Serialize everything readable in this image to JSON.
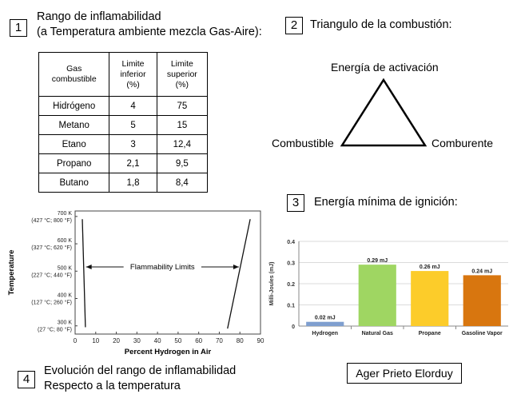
{
  "section1": {
    "number": "1",
    "title_line1": "Rango de inflamabilidad",
    "title_line2": "(a Temperatura ambiente mezcla Gas-Aire):",
    "table": {
      "headers": [
        "Gas combustible",
        "Limite inferior (%)",
        "Limite superior (%)"
      ],
      "rows": [
        [
          "Hidrógeno",
          "4",
          "75"
        ],
        [
          "Metano",
          "5",
          "15"
        ],
        [
          "Etano",
          "3",
          "12,4"
        ],
        [
          "Propano",
          "2,1",
          "9,5"
        ],
        [
          "Butano",
          "1,8",
          "8,4"
        ]
      ]
    }
  },
  "section2": {
    "number": "2",
    "title": "Triangulo de la combustión:",
    "top_label": "Energía de activación",
    "left_label": "Combustible",
    "right_label": "Comburente"
  },
  "section3": {
    "number": "3",
    "title": "Energía mínima de ignición:"
  },
  "section4": {
    "number": "4",
    "title_line1": "Evolución del rango de inflamabilidad",
    "title_line2": "Respecto a la temperatura"
  },
  "author": "Ager Prieto Elorduy",
  "chart_data": [
    {
      "type": "line",
      "title": "",
      "xlabel": "Percent Hydrogen in Air",
      "ylabel": "Temperature",
      "xlim": [
        0,
        90
      ],
      "ylim": [
        270,
        720
      ],
      "x_ticks": [
        "0",
        "10",
        "20",
        "30",
        "40",
        "50",
        "60",
        "70",
        "80",
        "90"
      ],
      "y_ticks": [
        {
          "value": 700,
          "l1": "700 K",
          "l2": "(427 °C; 800 °F)"
        },
        {
          "value": 600,
          "l1": "600 K",
          "l2": "(327 °C; 620 °F)"
        },
        {
          "value": 500,
          "l1": "500 K",
          "l2": "(227 °C; 440 °F)"
        },
        {
          "value": 400,
          "l1": "400 K",
          "l2": "(127 °C; 260 °F)"
        },
        {
          "value": 300,
          "l1": "300 K",
          "l2": "(27 °C; 80 °F)"
        }
      ],
      "annotation": "Flammability Limits",
      "series": [
        {
          "x": [
            3.5,
            5
          ],
          "y": [
            690,
            295
          ]
        },
        {
          "x": [
            74,
            85
          ],
          "y": [
            290,
            690
          ]
        }
      ]
    },
    {
      "type": "bar",
      "title": "",
      "xlabel": "",
      "ylabel": "Milli-Joules (mJ)",
      "ylim": [
        0,
        0.4
      ],
      "y_ticks": [
        "0",
        "0.1",
        "0.2",
        "0.3",
        "0.4"
      ],
      "categories": [
        "Hydrogen",
        "Natural Gas",
        "Propane",
        "Gasoline Vapor"
      ],
      "values": [
        0.02,
        0.29,
        0.26,
        0.24
      ],
      "labels": [
        "0.02 mJ",
        "0.29 mJ",
        "0.26 mJ",
        "0.24 mJ"
      ],
      "colors": [
        "#7f9fcf",
        "#9fd662",
        "#fccc2a",
        "#d8760f"
      ]
    }
  ]
}
